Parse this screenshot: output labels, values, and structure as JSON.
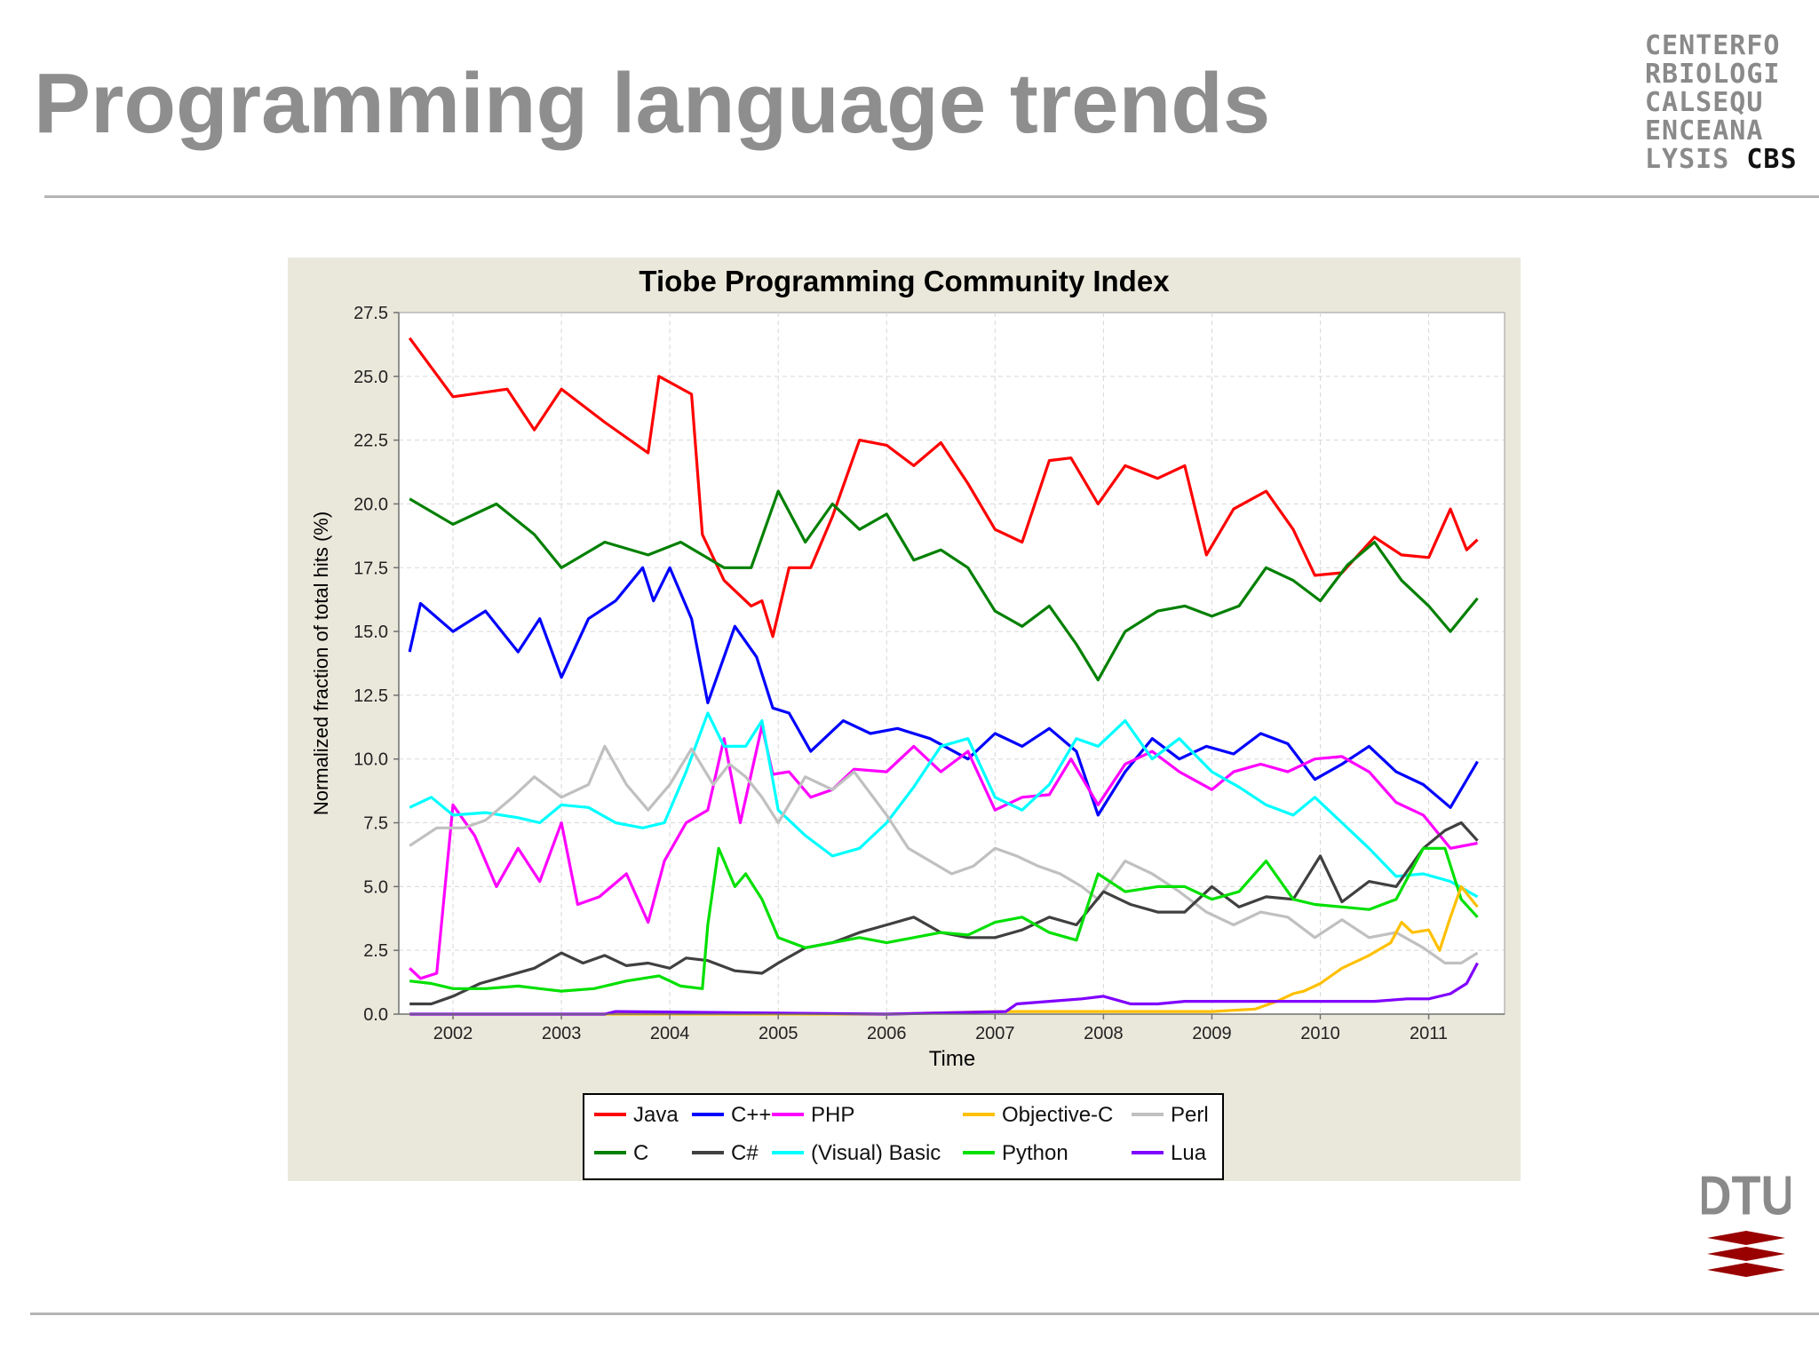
{
  "slide": {
    "title": "Programming language trends",
    "logo_top_lines": [
      "CENTERFO",
      "RBIOLOGI",
      "CALSEQU",
      "ENCEANA"
    ],
    "logo_last_prefix": "LYSIS ",
    "logo_last_strong": "CBS",
    "logo_bottom": "DTU"
  },
  "colors": {
    "title": "#8e8e8e",
    "panel_bg": "#eae8db",
    "dtu_red": "#990000"
  },
  "chart_data": {
    "type": "line",
    "title": "Tiobe Programming Community Index",
    "xlabel": "Time",
    "ylabel": "Normalized fraction of total hits (%)",
    "xlim": [
      2001.5,
      2011.7
    ],
    "ylim": [
      0,
      27.5
    ],
    "xticks": [
      "2002",
      "2003",
      "2004",
      "2005",
      "2006",
      "2007",
      "2008",
      "2009",
      "2010",
      "2011"
    ],
    "yticks": [
      "0.0",
      "2.5",
      "5.0",
      "7.5",
      "10.0",
      "12.5",
      "15.0",
      "17.5",
      "20.0",
      "22.5",
      "25.0",
      "27.5"
    ],
    "grid": true,
    "legend_position": "bottom",
    "series": [
      {
        "name": "Java",
        "color": "#ff0000",
        "x": [
          2001.6,
          2002.0,
          2002.5,
          2002.75,
          2003.0,
          2003.4,
          2003.8,
          2003.9,
          2004.2,
          2004.3,
          2004.5,
          2004.75,
          2004.85,
          2004.95,
          2005.1,
          2005.3,
          2005.5,
          2005.75,
          2006.0,
          2006.25,
          2006.5,
          2006.75,
          2007.0,
          2007.25,
          2007.5,
          2007.7,
          2007.95,
          2008.2,
          2008.5,
          2008.75,
          2008.95,
          2009.2,
          2009.5,
          2009.75,
          2009.95,
          2010.2,
          2010.5,
          2010.75,
          2011.0,
          2011.2,
          2011.35,
          2011.45
        ],
        "y": [
          26.5,
          24.2,
          24.5,
          22.9,
          24.5,
          23.2,
          22.0,
          25.0,
          24.3,
          18.8,
          17.0,
          16.0,
          16.2,
          14.8,
          17.5,
          17.5,
          19.5,
          22.5,
          22.3,
          21.5,
          22.4,
          20.8,
          19.0,
          18.5,
          21.7,
          21.8,
          20.0,
          21.5,
          21.0,
          21.5,
          18.0,
          19.8,
          20.5,
          19.0,
          17.2,
          17.3,
          18.7,
          18.0,
          17.9,
          19.8,
          18.2,
          18.6
        ]
      },
      {
        "name": "C",
        "color": "#008000",
        "x": [
          2001.6,
          2002.0,
          2002.4,
          2002.75,
          2003.0,
          2003.4,
          2003.8,
          2004.1,
          2004.3,
          2004.5,
          2004.75,
          2005.0,
          2005.25,
          2005.5,
          2005.75,
          2006.0,
          2006.25,
          2006.5,
          2006.75,
          2007.0,
          2007.25,
          2007.5,
          2007.75,
          2007.95,
          2008.2,
          2008.5,
          2008.75,
          2009.0,
          2009.25,
          2009.5,
          2009.75,
          2010.0,
          2010.25,
          2010.5,
          2010.75,
          2011.0,
          2011.2,
          2011.45
        ],
        "y": [
          20.2,
          19.2,
          20.0,
          18.8,
          17.5,
          18.5,
          18.0,
          18.5,
          18.0,
          17.5,
          17.5,
          20.5,
          18.5,
          20.0,
          19.0,
          19.6,
          17.8,
          18.2,
          17.5,
          15.8,
          15.2,
          16.0,
          14.5,
          13.1,
          15.0,
          15.8,
          16.0,
          15.6,
          16.0,
          17.5,
          17.0,
          16.2,
          17.6,
          18.5,
          17.0,
          16.0,
          15.0,
          16.3
        ]
      },
      {
        "name": "C++",
        "color": "#0000ff",
        "x": [
          2001.6,
          2001.7,
          2002.0,
          2002.3,
          2002.6,
          2002.8,
          2003.0,
          2003.25,
          2003.5,
          2003.75,
          2003.85,
          2004.0,
          2004.2,
          2004.35,
          2004.6,
          2004.8,
          2004.95,
          2005.1,
          2005.3,
          2005.6,
          2005.85,
          2006.1,
          2006.4,
          2006.75,
          2007.0,
          2007.25,
          2007.5,
          2007.75,
          2007.95,
          2008.2,
          2008.45,
          2008.7,
          2008.95,
          2009.2,
          2009.45,
          2009.7,
          2009.95,
          2010.2,
          2010.45,
          2010.7,
          2010.95,
          2011.2,
          2011.45
        ],
        "y": [
          14.2,
          16.1,
          15.0,
          15.8,
          14.2,
          15.5,
          13.2,
          15.5,
          16.2,
          17.5,
          16.2,
          17.5,
          15.5,
          12.2,
          15.2,
          14.0,
          12.0,
          11.8,
          10.3,
          11.5,
          11.0,
          11.2,
          10.8,
          10.0,
          11.0,
          10.5,
          11.2,
          10.3,
          7.8,
          9.5,
          10.8,
          10.0,
          10.5,
          10.2,
          11.0,
          10.6,
          9.2,
          9.8,
          10.5,
          9.5,
          9.0,
          8.1,
          9.9
        ]
      },
      {
        "name": "PHP",
        "color": "#ff00ff",
        "x": [
          2001.6,
          2001.7,
          2001.85,
          2002.0,
          2002.2,
          2002.4,
          2002.6,
          2002.8,
          2003.0,
          2003.15,
          2003.35,
          2003.6,
          2003.8,
          2003.95,
          2004.15,
          2004.35,
          2004.5,
          2004.65,
          2004.85,
          2004.95,
          2005.1,
          2005.3,
          2005.5,
          2005.7,
          2006.0,
          2006.25,
          2006.5,
          2006.75,
          2007.0,
          2007.25,
          2007.5,
          2007.7,
          2007.95,
          2008.2,
          2008.45,
          2008.7,
          2009.0,
          2009.2,
          2009.45,
          2009.7,
          2009.95,
          2010.2,
          2010.45,
          2010.7,
          2010.95,
          2011.2,
          2011.45
        ],
        "y": [
          1.8,
          1.4,
          1.6,
          8.2,
          7.0,
          5.0,
          6.5,
          5.2,
          7.5,
          4.3,
          4.6,
          5.5,
          3.6,
          6.0,
          7.5,
          8.0,
          10.8,
          7.5,
          11.3,
          9.4,
          9.5,
          8.5,
          8.8,
          9.6,
          9.5,
          10.5,
          9.5,
          10.3,
          8.0,
          8.5,
          8.6,
          10.0,
          8.2,
          9.8,
          10.3,
          9.5,
          8.8,
          9.5,
          9.8,
          9.5,
          10.0,
          10.1,
          9.5,
          8.3,
          7.8,
          6.5,
          6.7
        ]
      },
      {
        "name": "(Visual) Basic",
        "color": "#00ffff",
        "x": [
          2001.6,
          2001.8,
          2002.0,
          2002.3,
          2002.6,
          2002.8,
          2003.0,
          2003.25,
          2003.5,
          2003.75,
          2003.95,
          2004.15,
          2004.35,
          2004.5,
          2004.7,
          2004.85,
          2005.0,
          2005.25,
          2005.5,
          2005.75,
          2006.0,
          2006.25,
          2006.5,
          2006.75,
          2007.0,
          2007.25,
          2007.5,
          2007.75,
          2007.95,
          2008.2,
          2008.45,
          2008.7,
          2009.0,
          2009.25,
          2009.5,
          2009.75,
          2009.95,
          2010.2,
          2010.45,
          2010.7,
          2010.95,
          2011.2,
          2011.45
        ],
        "y": [
          8.1,
          8.5,
          7.8,
          7.9,
          7.7,
          7.5,
          8.2,
          8.1,
          7.5,
          7.3,
          7.5,
          9.5,
          11.8,
          10.5,
          10.5,
          11.5,
          8.0,
          7.0,
          6.2,
          6.5,
          7.5,
          8.9,
          10.5,
          10.8,
          8.5,
          8.0,
          9.0,
          10.8,
          10.5,
          11.5,
          10.0,
          10.8,
          9.5,
          8.9,
          8.2,
          7.8,
          8.5,
          7.5,
          6.5,
          5.4,
          5.5,
          5.2,
          4.6
        ]
      },
      {
        "name": "Perl",
        "color": "#c0c0c0",
        "x": [
          2001.6,
          2001.85,
          2002.1,
          2002.3,
          2002.55,
          2002.75,
          2003.0,
          2003.25,
          2003.4,
          2003.6,
          2003.8,
          2004.0,
          2004.2,
          2004.4,
          2004.55,
          2004.7,
          2004.85,
          2005.0,
          2005.25,
          2005.5,
          2005.7,
          2006.0,
          2006.2,
          2006.4,
          2006.6,
          2006.8,
          2007.0,
          2007.2,
          2007.4,
          2007.6,
          2007.8,
          2007.95,
          2008.2,
          2008.45,
          2008.7,
          2008.95,
          2009.2,
          2009.45,
          2009.7,
          2009.95,
          2010.2,
          2010.45,
          2010.7,
          2010.95,
          2011.15,
          2011.3,
          2011.45
        ],
        "y": [
          6.6,
          7.3,
          7.3,
          7.6,
          8.5,
          9.3,
          8.5,
          9.0,
          10.5,
          9.0,
          8.0,
          9.0,
          10.4,
          9.0,
          9.8,
          9.3,
          8.5,
          7.5,
          9.3,
          8.8,
          9.5,
          7.8,
          6.5,
          6.0,
          5.5,
          5.8,
          6.5,
          6.2,
          5.8,
          5.5,
          5.0,
          4.5,
          6.0,
          5.5,
          4.8,
          4.0,
          3.5,
          4.0,
          3.8,
          3.0,
          3.7,
          3.0,
          3.2,
          2.6,
          2.0,
          2.0,
          2.4
        ]
      },
      {
        "name": "C#",
        "color": "#404040",
        "x": [
          2001.6,
          2001.8,
          2002.0,
          2002.25,
          2002.5,
          2002.75,
          2003.0,
          2003.2,
          2003.4,
          2003.6,
          2003.8,
          2004.0,
          2004.15,
          2004.35,
          2004.6,
          2004.85,
          2005.0,
          2005.25,
          2005.5,
          2005.75,
          2006.0,
          2006.25,
          2006.5,
          2006.75,
          2007.0,
          2007.25,
          2007.5,
          2007.75,
          2008.0,
          2008.25,
          2008.5,
          2008.75,
          2009.0,
          2009.25,
          2009.5,
          2009.75,
          2010.0,
          2010.2,
          2010.45,
          2010.7,
          2010.95,
          2011.15,
          2011.3,
          2011.45
        ],
        "y": [
          0.4,
          0.4,
          0.7,
          1.2,
          1.5,
          1.8,
          2.4,
          2.0,
          2.3,
          1.9,
          2.0,
          1.8,
          2.2,
          2.1,
          1.7,
          1.6,
          2.0,
          2.6,
          2.8,
          3.2,
          3.5,
          3.8,
          3.2,
          3.0,
          3.0,
          3.3,
          3.8,
          3.5,
          4.8,
          4.3,
          4.0,
          4.0,
          5.0,
          4.2,
          4.6,
          4.5,
          6.2,
          4.4,
          5.2,
          5.0,
          6.5,
          7.2,
          7.5,
          6.8
        ]
      },
      {
        "name": "Python",
        "color": "#00e000",
        "x": [
          2001.6,
          2001.8,
          2002.0,
          2002.3,
          2002.6,
          2002.8,
          2003.0,
          2003.3,
          2003.6,
          2003.75,
          2003.9,
          2004.1,
          2004.3,
          2004.35,
          2004.45,
          2004.6,
          2004.7,
          2004.85,
          2005.0,
          2005.25,
          2005.5,
          2005.75,
          2006.0,
          2006.25,
          2006.5,
          2006.75,
          2007.0,
          2007.25,
          2007.5,
          2007.75,
          2007.95,
          2008.2,
          2008.5,
          2008.75,
          2009.0,
          2009.25,
          2009.5,
          2009.75,
          2009.95,
          2010.2,
          2010.45,
          2010.7,
          2010.95,
          2011.15,
          2011.3,
          2011.45
        ],
        "y": [
          1.3,
          1.2,
          1.0,
          1.0,
          1.1,
          1.0,
          0.9,
          1.0,
          1.3,
          1.4,
          1.5,
          1.1,
          1.0,
          3.5,
          6.5,
          5.0,
          5.5,
          4.5,
          3.0,
          2.6,
          2.8,
          3.0,
          2.8,
          3.0,
          3.2,
          3.1,
          3.6,
          3.8,
          3.2,
          2.9,
          5.5,
          4.8,
          5.0,
          5.0,
          4.5,
          4.8,
          6.0,
          4.5,
          4.3,
          4.2,
          4.1,
          4.5,
          6.5,
          6.5,
          4.5,
          3.8
        ]
      },
      {
        "name": "Objective-C",
        "color": "#ffc000",
        "x": [
          2001.6,
          2002.0,
          2003.0,
          2004.0,
          2005.0,
          2006.0,
          2007.0,
          2008.0,
          2009.0,
          2009.4,
          2009.6,
          2009.75,
          2009.85,
          2010.0,
          2010.2,
          2010.45,
          2010.65,
          2010.75,
          2010.85,
          2011.0,
          2011.1,
          2011.2,
          2011.3,
          2011.45
        ],
        "y": [
          0.0,
          0.0,
          0.0,
          0.0,
          0.0,
          0.0,
          0.1,
          0.1,
          0.1,
          0.2,
          0.5,
          0.8,
          0.9,
          1.2,
          1.8,
          2.3,
          2.8,
          3.6,
          3.2,
          3.3,
          2.5,
          3.8,
          5.0,
          4.2
        ]
      },
      {
        "name": "Lua",
        "color": "#8000ff",
        "x": [
          2001.6,
          2003.4,
          2003.5,
          2006.0,
          2007.1,
          2007.2,
          2007.5,
          2007.8,
          2008.0,
          2008.25,
          2008.5,
          2008.75,
          2009.0,
          2009.5,
          2010.0,
          2010.5,
          2010.8,
          2011.0,
          2011.2,
          2011.35,
          2011.45
        ],
        "y": [
          0.0,
          0.0,
          0.1,
          0.0,
          0.1,
          0.4,
          0.5,
          0.6,
          0.7,
          0.4,
          0.4,
          0.5,
          0.5,
          0.5,
          0.5,
          0.5,
          0.6,
          0.6,
          0.8,
          1.2,
          2.0
        ]
      }
    ]
  }
}
